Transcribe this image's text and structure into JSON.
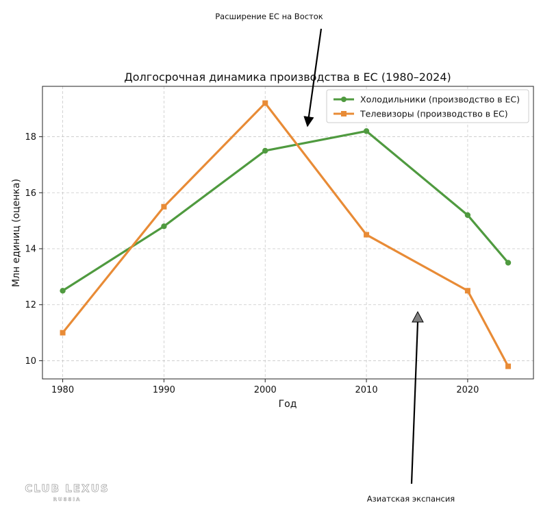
{
  "chart_data": {
    "type": "line",
    "title": "Долгосрочная динамика производства в ЕС (1980–2024)",
    "xlabel": "Год",
    "ylabel": "Млн единиц (оценка)",
    "x": [
      1980,
      1990,
      2000,
      2010,
      2020,
      2024
    ],
    "xticks": [
      1980,
      1990,
      2000,
      2010,
      2020
    ],
    "yticks": [
      10,
      12,
      14,
      16,
      18
    ],
    "xlim": [
      1978,
      2026.5
    ],
    "ylim": [
      9.35,
      19.8
    ],
    "grid": true,
    "legend_position": "top-right",
    "series": [
      {
        "name": "Холодильники (производство в ЕС)",
        "values": [
          12.5,
          14.8,
          17.5,
          18.2,
          15.2,
          13.5
        ],
        "color": "#4f9a3f",
        "marker": "circle"
      },
      {
        "name": "Телевизоры (производство в ЕС)",
        "values": [
          11.0,
          15.5,
          19.2,
          14.5,
          12.5,
          9.8
        ],
        "color": "#e88b36",
        "marker": "square"
      }
    ],
    "annotations": [
      {
        "text": "Расширение ЕС на Восток",
        "arrow_to": [
          2004,
          18.2
        ],
        "arrow_color": "#000000"
      },
      {
        "text": "Азиатская экспансия",
        "arrow_to": [
          2015,
          11.6
        ],
        "arrow_color": "#808080"
      }
    ]
  },
  "watermark": {
    "line1": "CLUB LEXUS",
    "line2": "RUSSIA"
  }
}
